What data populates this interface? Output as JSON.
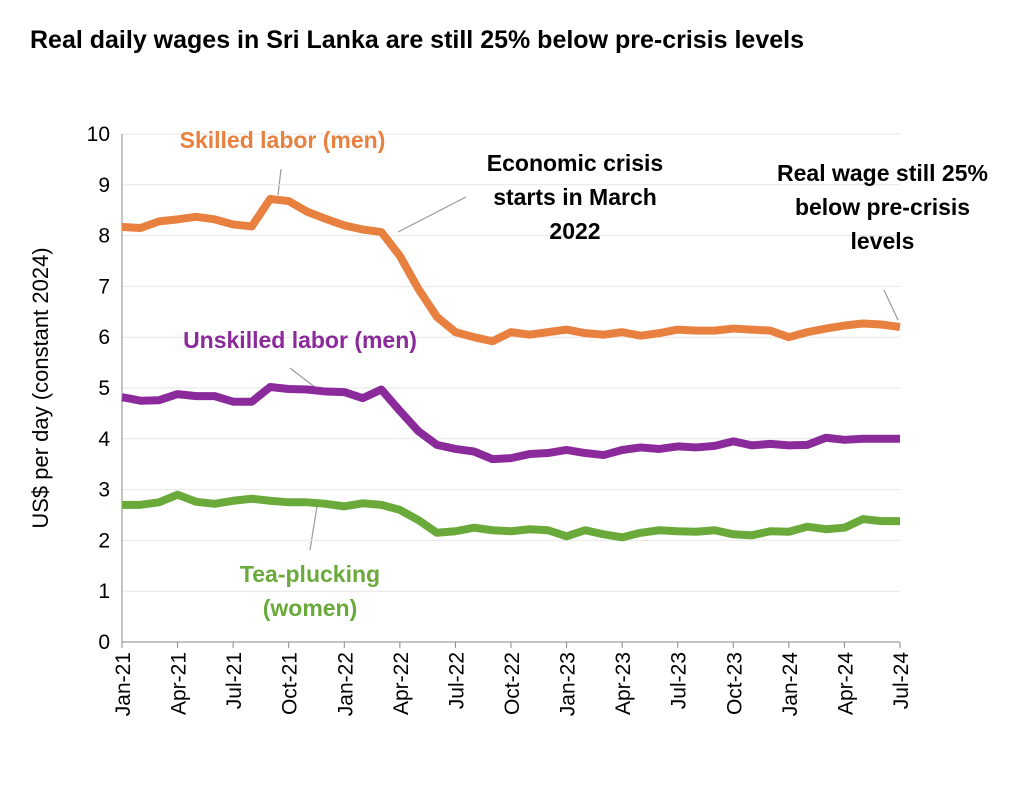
{
  "chart_data": {
    "type": "line",
    "title": "Real daily wages in Sri Lanka are still 25% below pre-crisis levels",
    "y_label": "US$ per day (constant 2024)",
    "categories": [
      "Jan-21",
      null,
      null,
      "Apr-21",
      null,
      null,
      "Jul-21",
      null,
      null,
      "Oct-21",
      null,
      null,
      "Jan-22",
      null,
      null,
      "Apr-22",
      null,
      null,
      "Jul-22",
      null,
      null,
      "Oct-22",
      null,
      null,
      "Jan-23",
      null,
      null,
      "Apr-23",
      null,
      null,
      "Jul-23",
      null,
      null,
      "Oct-23",
      null,
      null,
      "Jan-24",
      null,
      null,
      "Apr-24",
      null,
      null,
      "Jul-24"
    ],
    "series": [
      {
        "name": "Skilled labor (men)",
        "color": "#e8803f",
        "values": [
          8.17,
          8.15,
          8.28,
          8.32,
          8.37,
          8.32,
          8.22,
          8.18,
          8.72,
          8.68,
          8.47,
          8.33,
          8.2,
          8.12,
          8.07,
          7.6,
          6.95,
          6.4,
          6.1,
          6.0,
          5.92,
          6.1,
          6.05,
          6.1,
          6.15,
          6.08,
          6.05,
          6.1,
          6.03,
          6.08,
          6.15,
          6.13,
          6.13,
          6.17,
          6.15,
          6.13,
          6.0,
          6.1,
          6.17,
          6.23,
          6.27,
          6.25,
          6.2
        ]
      },
      {
        "name": "Unskilled labor (men)",
        "color": "#8b2a9b",
        "values": [
          4.82,
          4.75,
          4.76,
          4.88,
          4.84,
          4.84,
          4.73,
          4.73,
          5.02,
          4.98,
          4.97,
          4.93,
          4.92,
          4.8,
          4.97,
          4.55,
          4.15,
          3.88,
          3.8,
          3.75,
          3.6,
          3.62,
          3.7,
          3.72,
          3.78,
          3.72,
          3.68,
          3.78,
          3.83,
          3.8,
          3.85,
          3.83,
          3.86,
          3.95,
          3.87,
          3.9,
          3.87,
          3.88,
          4.02,
          3.98,
          4.0,
          4.0,
          4.0
        ]
      },
      {
        "name": "Tea-plucking (women)",
        "color": "#6aaa3a",
        "values": [
          2.7,
          2.7,
          2.75,
          2.9,
          2.76,
          2.72,
          2.78,
          2.82,
          2.78,
          2.75,
          2.75,
          2.72,
          2.67,
          2.73,
          2.7,
          2.6,
          2.4,
          2.15,
          2.18,
          2.25,
          2.2,
          2.18,
          2.22,
          2.2,
          2.08,
          2.2,
          2.12,
          2.06,
          2.15,
          2.2,
          2.18,
          2.17,
          2.2,
          2.12,
          2.1,
          2.18,
          2.17,
          2.27,
          2.22,
          2.25,
          2.42,
          2.38,
          2.38
        ]
      }
    ],
    "annotations": [
      "Economic crisis starts in March 2022",
      "Real wage still 25% below pre-crisis levels"
    ],
    "ylim": [
      0,
      10
    ],
    "yticks": [
      0,
      1,
      2,
      3,
      4,
      5,
      6,
      7,
      8,
      9,
      10
    ],
    "grid": true
  }
}
